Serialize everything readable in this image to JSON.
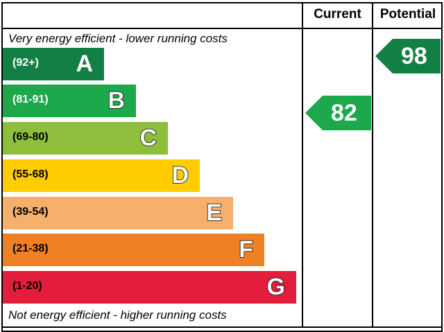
{
  "chart_data": {
    "type": "bar",
    "columns": {
      "current": "Current",
      "potential": "Potential"
    },
    "top_caption": "Very energy efficient - lower running costs",
    "bottom_caption": "Not energy efficient - higher running costs",
    "bands": [
      {
        "range": "(92+)",
        "letter": "A",
        "color": "#128045",
        "min": 92,
        "max": 100
      },
      {
        "range": "(81-91)",
        "letter": "B",
        "color": "#1ca84b",
        "min": 81,
        "max": 91
      },
      {
        "range": "(69-80)",
        "letter": "C",
        "color": "#8dbf3c",
        "min": 69,
        "max": 80
      },
      {
        "range": "(55-68)",
        "letter": "D",
        "color": "#ffcc00",
        "min": 55,
        "max": 68
      },
      {
        "range": "(39-54)",
        "letter": "E",
        "color": "#f5b06d",
        "min": 39,
        "max": 54
      },
      {
        "range": "(21-38)",
        "letter": "F",
        "color": "#ef8023",
        "min": 21,
        "max": 38
      },
      {
        "range": "(1-20)",
        "letter": "G",
        "color": "#e31d3c",
        "min": 1,
        "max": 20
      }
    ],
    "current": {
      "value": 82,
      "band": "B",
      "color": "#1ca84b"
    },
    "potential": {
      "value": 98,
      "band": "A",
      "color": "#128045"
    }
  }
}
